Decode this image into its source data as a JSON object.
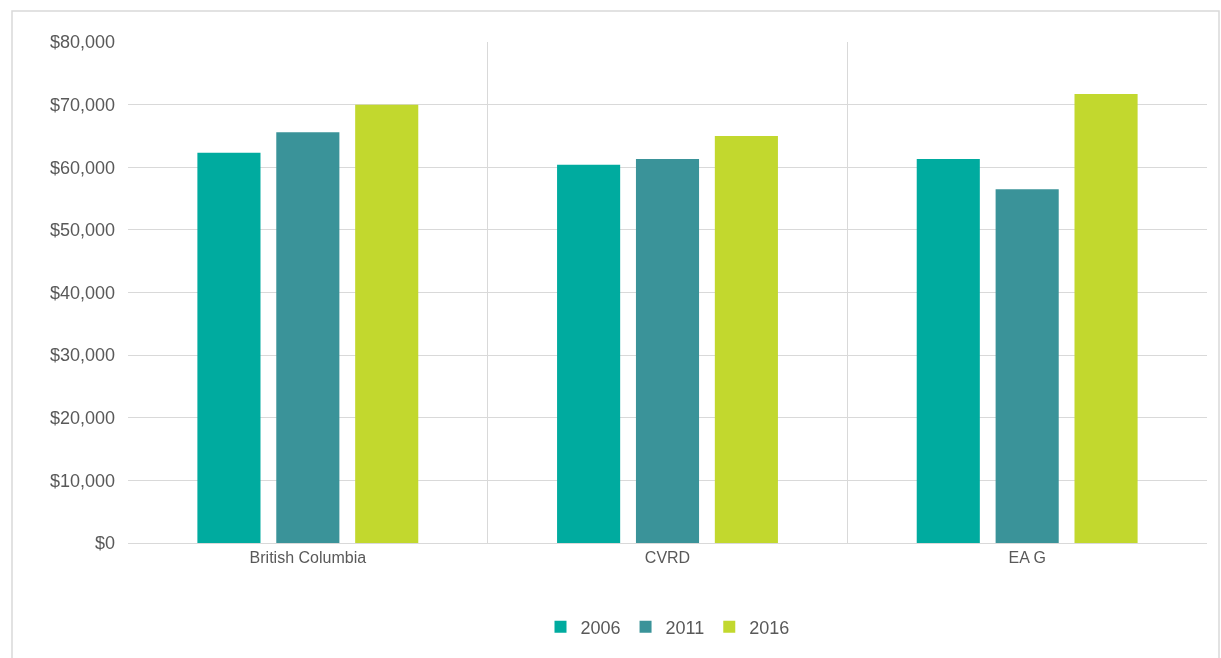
{
  "chart_data": {
    "type": "bar",
    "categories": [
      "British Columbia",
      "CVRD",
      "EA G"
    ],
    "series": [
      {
        "name": "2006",
        "color": "#00ab9f",
        "values": [
          62300,
          60400,
          61300
        ]
      },
      {
        "name": "2011",
        "color": "#3a9399",
        "values": [
          65600,
          61300,
          56500
        ]
      },
      {
        "name": "2016",
        "color": "#c2d82e",
        "values": [
          70000,
          65000,
          71700
        ]
      }
    ],
    "ylim": [
      0,
      80000
    ],
    "yticks": [
      {
        "value": 0,
        "label": "$0"
      },
      {
        "value": 10000,
        "label": "$10,000"
      },
      {
        "value": 20000,
        "label": "$20,000"
      },
      {
        "value": 30000,
        "label": "$30,000"
      },
      {
        "value": 40000,
        "label": "$40,000"
      },
      {
        "value": 50000,
        "label": "$50,000"
      },
      {
        "value": 60000,
        "label": "$60,000"
      },
      {
        "value": 70000,
        "label": "$70,000"
      },
      {
        "value": 80000,
        "label": "$80,000"
      }
    ],
    "grid": true,
    "legend": "bottom"
  }
}
